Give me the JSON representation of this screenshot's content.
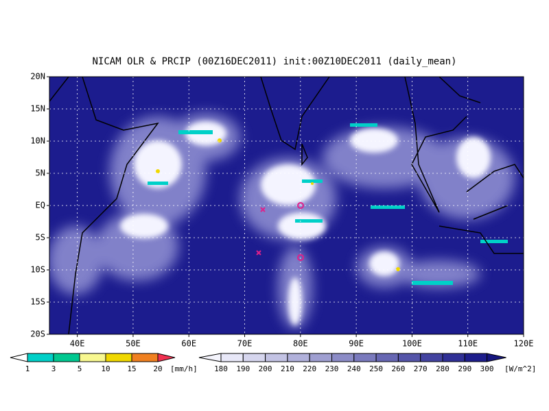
{
  "title": "NICAM OLR & PRCIP (00Z16DEC2011) init:00Z10DEC2011 (daily_mean)",
  "lat_labels": [
    "20N",
    "15N",
    "10N",
    "5N",
    "EQ",
    "5S",
    "10S",
    "15S",
    "20S"
  ],
  "lon_labels": [
    "40E",
    "50E",
    "60E",
    "70E",
    "80E",
    "90E",
    "100E",
    "110E",
    "120E"
  ],
  "precip_legend": {
    "labels": [
      "1",
      "3",
      "5",
      "10",
      "15",
      "20"
    ],
    "unit": "[mm/h]"
  },
  "olr_legend": {
    "labels": [
      "180",
      "190",
      "200",
      "210",
      "220",
      "230",
      "240",
      "250",
      "260",
      "270",
      "280",
      "290",
      "300"
    ],
    "unit": "[W/m^2]"
  }
}
